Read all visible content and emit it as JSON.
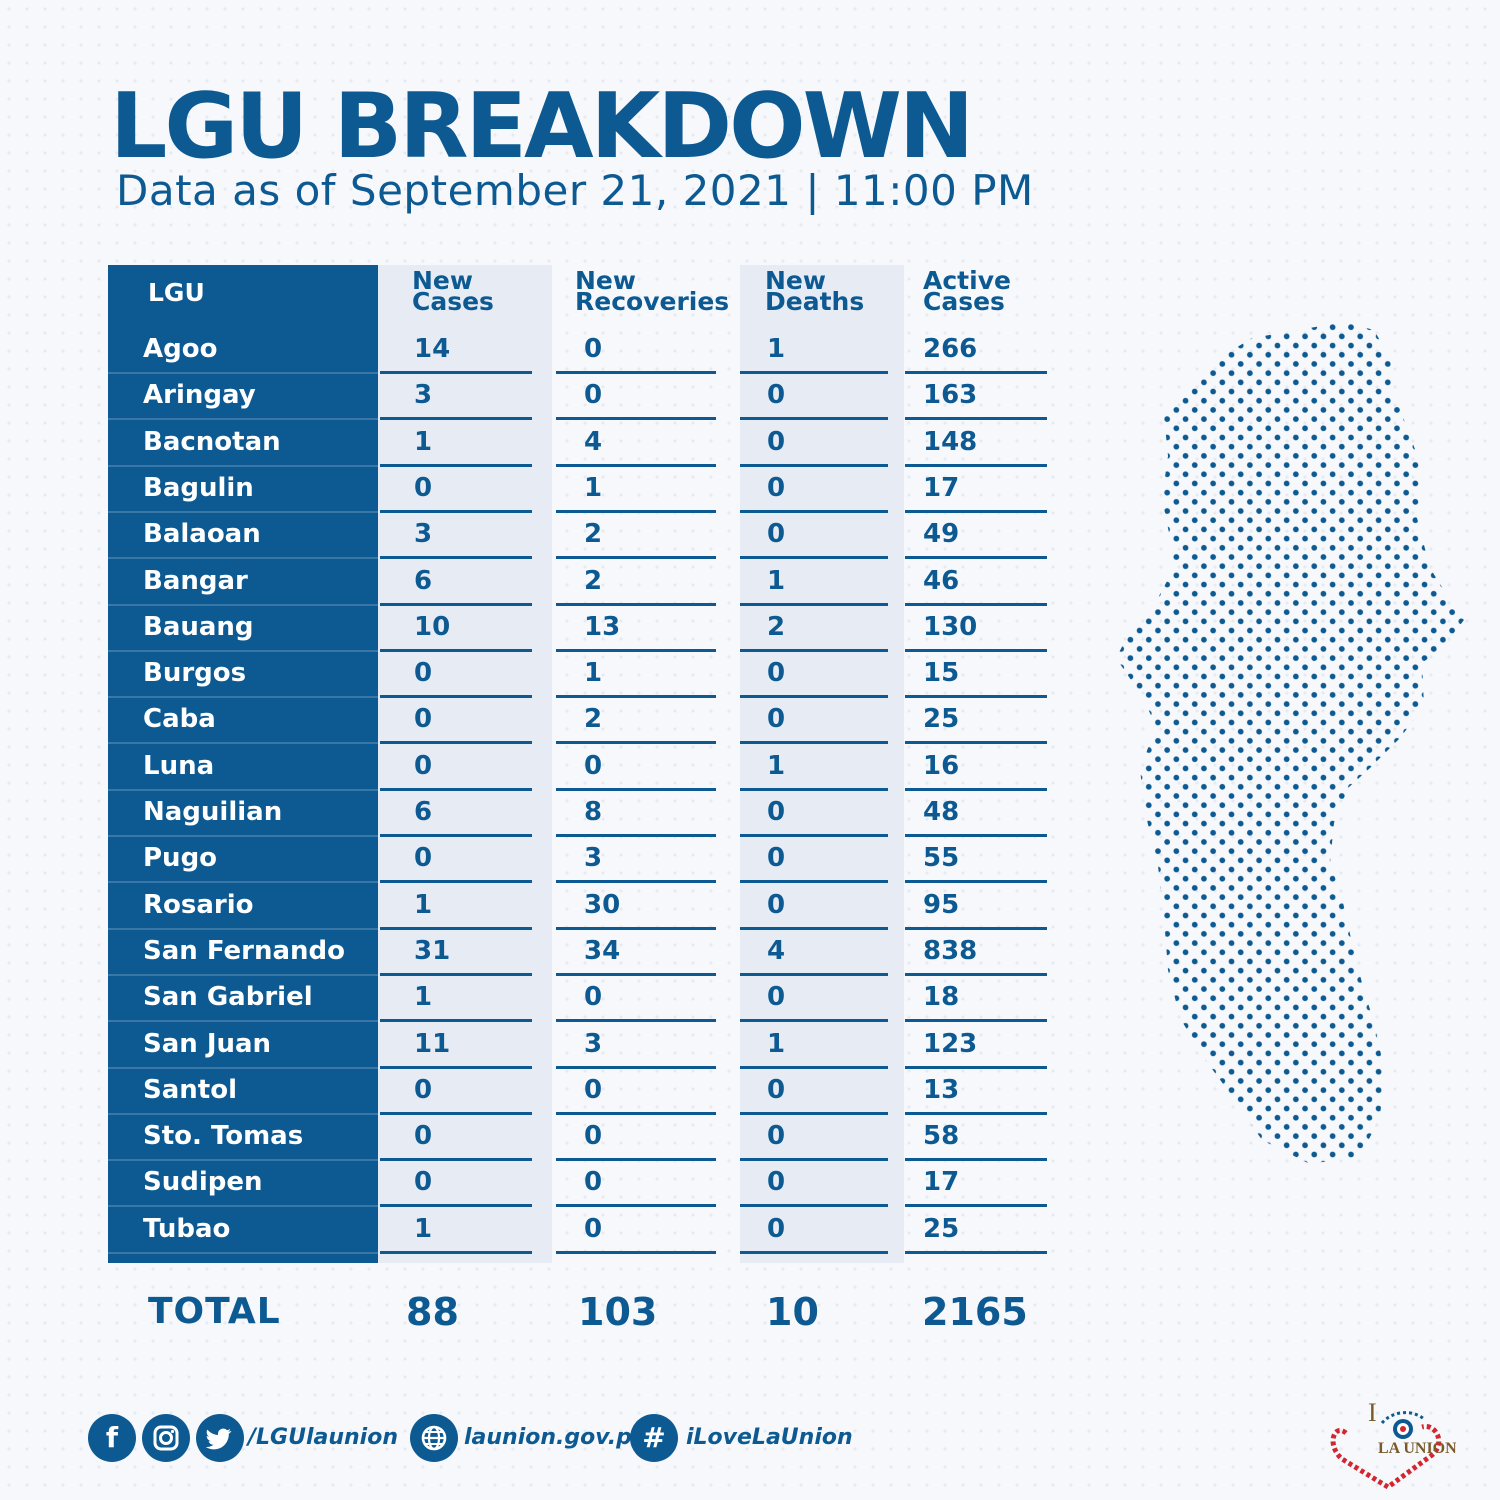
{
  "header": {
    "title": "LGU BREAKDOWN",
    "subtitle": "Data as of September 21, 2021 | 11:00 PM"
  },
  "table": {
    "columns": {
      "lgu": "LGU",
      "new_cases": [
        "New",
        "Cases"
      ],
      "new_recoveries": [
        "New",
        "Recoveries"
      ],
      "new_deaths": [
        "New",
        "Deaths"
      ],
      "active_cases": [
        "Active",
        "Cases"
      ]
    },
    "rows": [
      {
        "lgu": "Agoo",
        "new_cases": "14",
        "new_recoveries": "0",
        "new_deaths": "1",
        "active_cases": "266"
      },
      {
        "lgu": "Aringay",
        "new_cases": "3",
        "new_recoveries": "0",
        "new_deaths": "0",
        "active_cases": "163"
      },
      {
        "lgu": "Bacnotan",
        "new_cases": "1",
        "new_recoveries": "4",
        "new_deaths": "0",
        "active_cases": "148"
      },
      {
        "lgu": "Bagulin",
        "new_cases": "0",
        "new_recoveries": "1",
        "new_deaths": "0",
        "active_cases": "17"
      },
      {
        "lgu": "Balaoan",
        "new_cases": "3",
        "new_recoveries": "2",
        "new_deaths": "0",
        "active_cases": "49"
      },
      {
        "lgu": "Bangar",
        "new_cases": "6",
        "new_recoveries": "2",
        "new_deaths": "1",
        "active_cases": "46"
      },
      {
        "lgu": "Bauang",
        "new_cases": "10",
        "new_recoveries": "13",
        "new_deaths": "2",
        "active_cases": "130"
      },
      {
        "lgu": "Burgos",
        "new_cases": "0",
        "new_recoveries": "1",
        "new_deaths": "0",
        "active_cases": "15"
      },
      {
        "lgu": "Caba",
        "new_cases": "0",
        "new_recoveries": "2",
        "new_deaths": "0",
        "active_cases": "25"
      },
      {
        "lgu": "Luna",
        "new_cases": "0",
        "new_recoveries": "0",
        "new_deaths": "1",
        "active_cases": "16"
      },
      {
        "lgu": "Naguilian",
        "new_cases": "6",
        "new_recoveries": "8",
        "new_deaths": "0",
        "active_cases": "48"
      },
      {
        "lgu": "Pugo",
        "new_cases": "0",
        "new_recoveries": "3",
        "new_deaths": "0",
        "active_cases": "55"
      },
      {
        "lgu": "Rosario",
        "new_cases": "1",
        "new_recoveries": "30",
        "new_deaths": "0",
        "active_cases": "95"
      },
      {
        "lgu": "San Fernando",
        "new_cases": "31",
        "new_recoveries": "34",
        "new_deaths": "4",
        "active_cases": "838"
      },
      {
        "lgu": "San Gabriel",
        "new_cases": "1",
        "new_recoveries": "0",
        "new_deaths": "0",
        "active_cases": "18"
      },
      {
        "lgu": "San Juan",
        "new_cases": "11",
        "new_recoveries": "3",
        "new_deaths": "1",
        "active_cases": "123"
      },
      {
        "lgu": "Santol",
        "new_cases": "0",
        "new_recoveries": "0",
        "new_deaths": "0",
        "active_cases": "13"
      },
      {
        "lgu": "Sto. Tomas",
        "new_cases": "0",
        "new_recoveries": "0",
        "new_deaths": "0",
        "active_cases": "58"
      },
      {
        "lgu": "Sudipen",
        "new_cases": "0",
        "new_recoveries": "0",
        "new_deaths": "0",
        "active_cases": "17"
      },
      {
        "lgu": "Tubao",
        "new_cases": "1",
        "new_recoveries": "0",
        "new_deaths": "0",
        "active_cases": "25"
      }
    ],
    "total": {
      "label": "TOTAL",
      "new_cases": "88",
      "new_recoveries": "103",
      "new_deaths": "10",
      "active_cases": "2165"
    }
  },
  "footer": {
    "facebook_icon_glyph": "f",
    "hashtag_icon_glyph": "#",
    "social_handle": "/LGUlaunion",
    "website": "launion.gov.ph",
    "hashtag": "iLoveLaUnion"
  },
  "logo": {
    "text_top": "I",
    "text_bottom": "LA UNION"
  },
  "colors": {
    "brand_blue": "#0d5a93",
    "light_band": "#e6ebf4",
    "background": "#f6f8fb",
    "logo_red": "#d22630"
  },
  "icons": [
    "facebook-icon",
    "instagram-icon",
    "twitter-icon",
    "globe-icon",
    "hashtag-icon",
    "dotted-map-illustration",
    "i-love-la-union-logo"
  ]
}
